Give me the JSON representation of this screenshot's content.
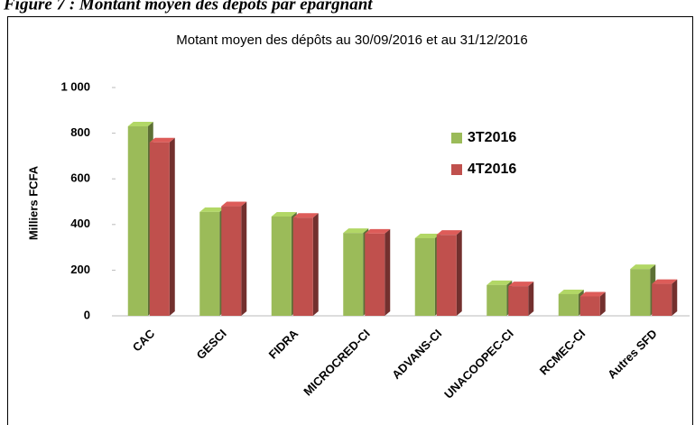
{
  "figure_caption": "Figure 7 : Montant moyen des dépôts par épargnant",
  "chart_data": {
    "type": "bar3d",
    "title": "Motant moyen des dépôts au  30/09/2016 et au 31/12/2016",
    "y_label": "Milliers FCFA",
    "categories": [
      "CAC",
      "GESCI",
      "FIDRA",
      "MICROCRED-CI",
      "ADVANS-CI",
      "UNACOOPEC-CI",
      "RCMEC-CI",
      "Autres SFD"
    ],
    "series": [
      {
        "name": "3T2016",
        "color": "#9bbb59",
        "values": [
          830,
          455,
          435,
          363,
          340,
          135,
          95,
          205
        ]
      },
      {
        "name": "4T2016",
        "color": "#c0504d",
        "values": [
          760,
          480,
          430,
          360,
          355,
          130,
          85,
          140
        ]
      }
    ],
    "ylim": [
      0,
      1000
    ],
    "yticks": [
      0,
      200,
      400,
      600,
      800,
      {
        "value": 1000,
        "label": "1 000"
      }
    ],
    "grid": false,
    "legend": "top-right"
  }
}
